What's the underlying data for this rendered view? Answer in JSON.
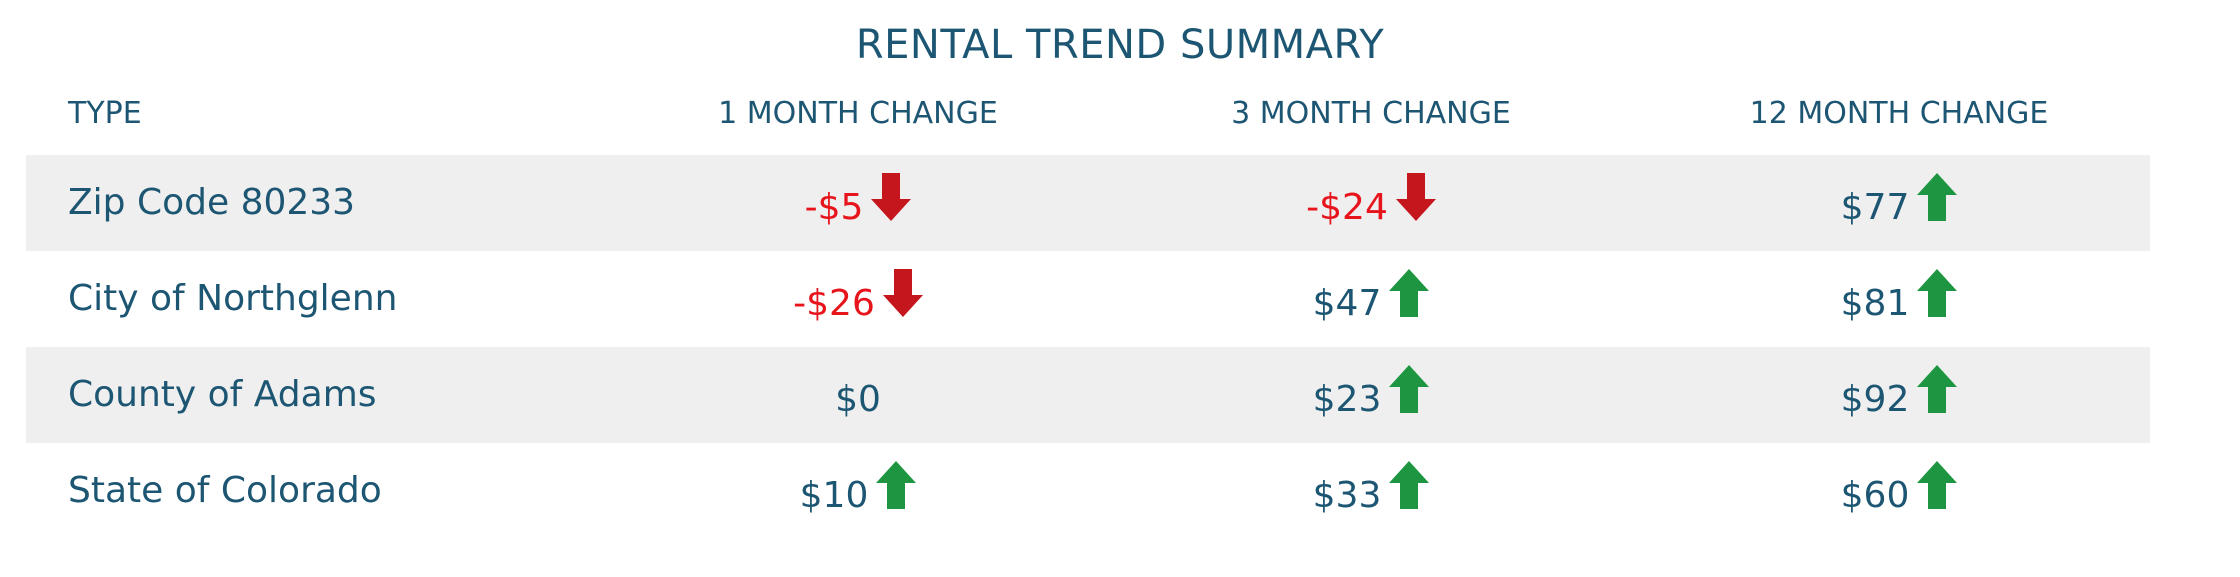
{
  "title": "RENTAL TREND SUMMARY",
  "columns": [
    "TYPE",
    "1 MONTH CHANGE",
    "3 MONTH CHANGE",
    "12 MONTH CHANGE"
  ],
  "colors": {
    "text": "#1d5673",
    "negative": "#e8141c",
    "down_arrow": "#c4161c",
    "up_arrow": "#1e9641",
    "row_shade": "#efefef"
  },
  "rows": [
    {
      "label": "Zip Code 80233",
      "cells": [
        {
          "text": "-$5",
          "value": -5,
          "trend": "down"
        },
        {
          "text": "-$24",
          "value": -24,
          "trend": "down"
        },
        {
          "text": "$77",
          "value": 77,
          "trend": "up"
        }
      ]
    },
    {
      "label": "City of Northglenn",
      "cells": [
        {
          "text": "-$26",
          "value": -26,
          "trend": "down"
        },
        {
          "text": "$47",
          "value": 47,
          "trend": "up"
        },
        {
          "text": "$81",
          "value": 81,
          "trend": "up"
        }
      ]
    },
    {
      "label": "County of Adams",
      "cells": [
        {
          "text": "$0",
          "value": 0,
          "trend": "none"
        },
        {
          "text": "$23",
          "value": 23,
          "trend": "up"
        },
        {
          "text": "$92",
          "value": 92,
          "trend": "up"
        }
      ]
    },
    {
      "label": "State of Colorado",
      "cells": [
        {
          "text": "$10",
          "value": 10,
          "trend": "up"
        },
        {
          "text": "$33",
          "value": 33,
          "trend": "up"
        },
        {
          "text": "$60",
          "value": 60,
          "trend": "up"
        }
      ]
    }
  ],
  "chart_data": {
    "type": "table",
    "title": "RENTAL TREND SUMMARY",
    "columns": [
      "TYPE",
      "1 MONTH CHANGE",
      "3 MONTH CHANGE",
      "12 MONTH CHANGE"
    ],
    "categories": [
      "Zip Code 80233",
      "City of Northglenn",
      "County of Adams",
      "State of Colorado"
    ],
    "series": [
      {
        "name": "1 MONTH CHANGE",
        "values": [
          -5,
          -26,
          0,
          10
        ]
      },
      {
        "name": "3 MONTH CHANGE",
        "values": [
          -24,
          47,
          23,
          33
        ]
      },
      {
        "name": "12 MONTH CHANGE",
        "values": [
          77,
          81,
          92,
          60
        ]
      }
    ]
  }
}
